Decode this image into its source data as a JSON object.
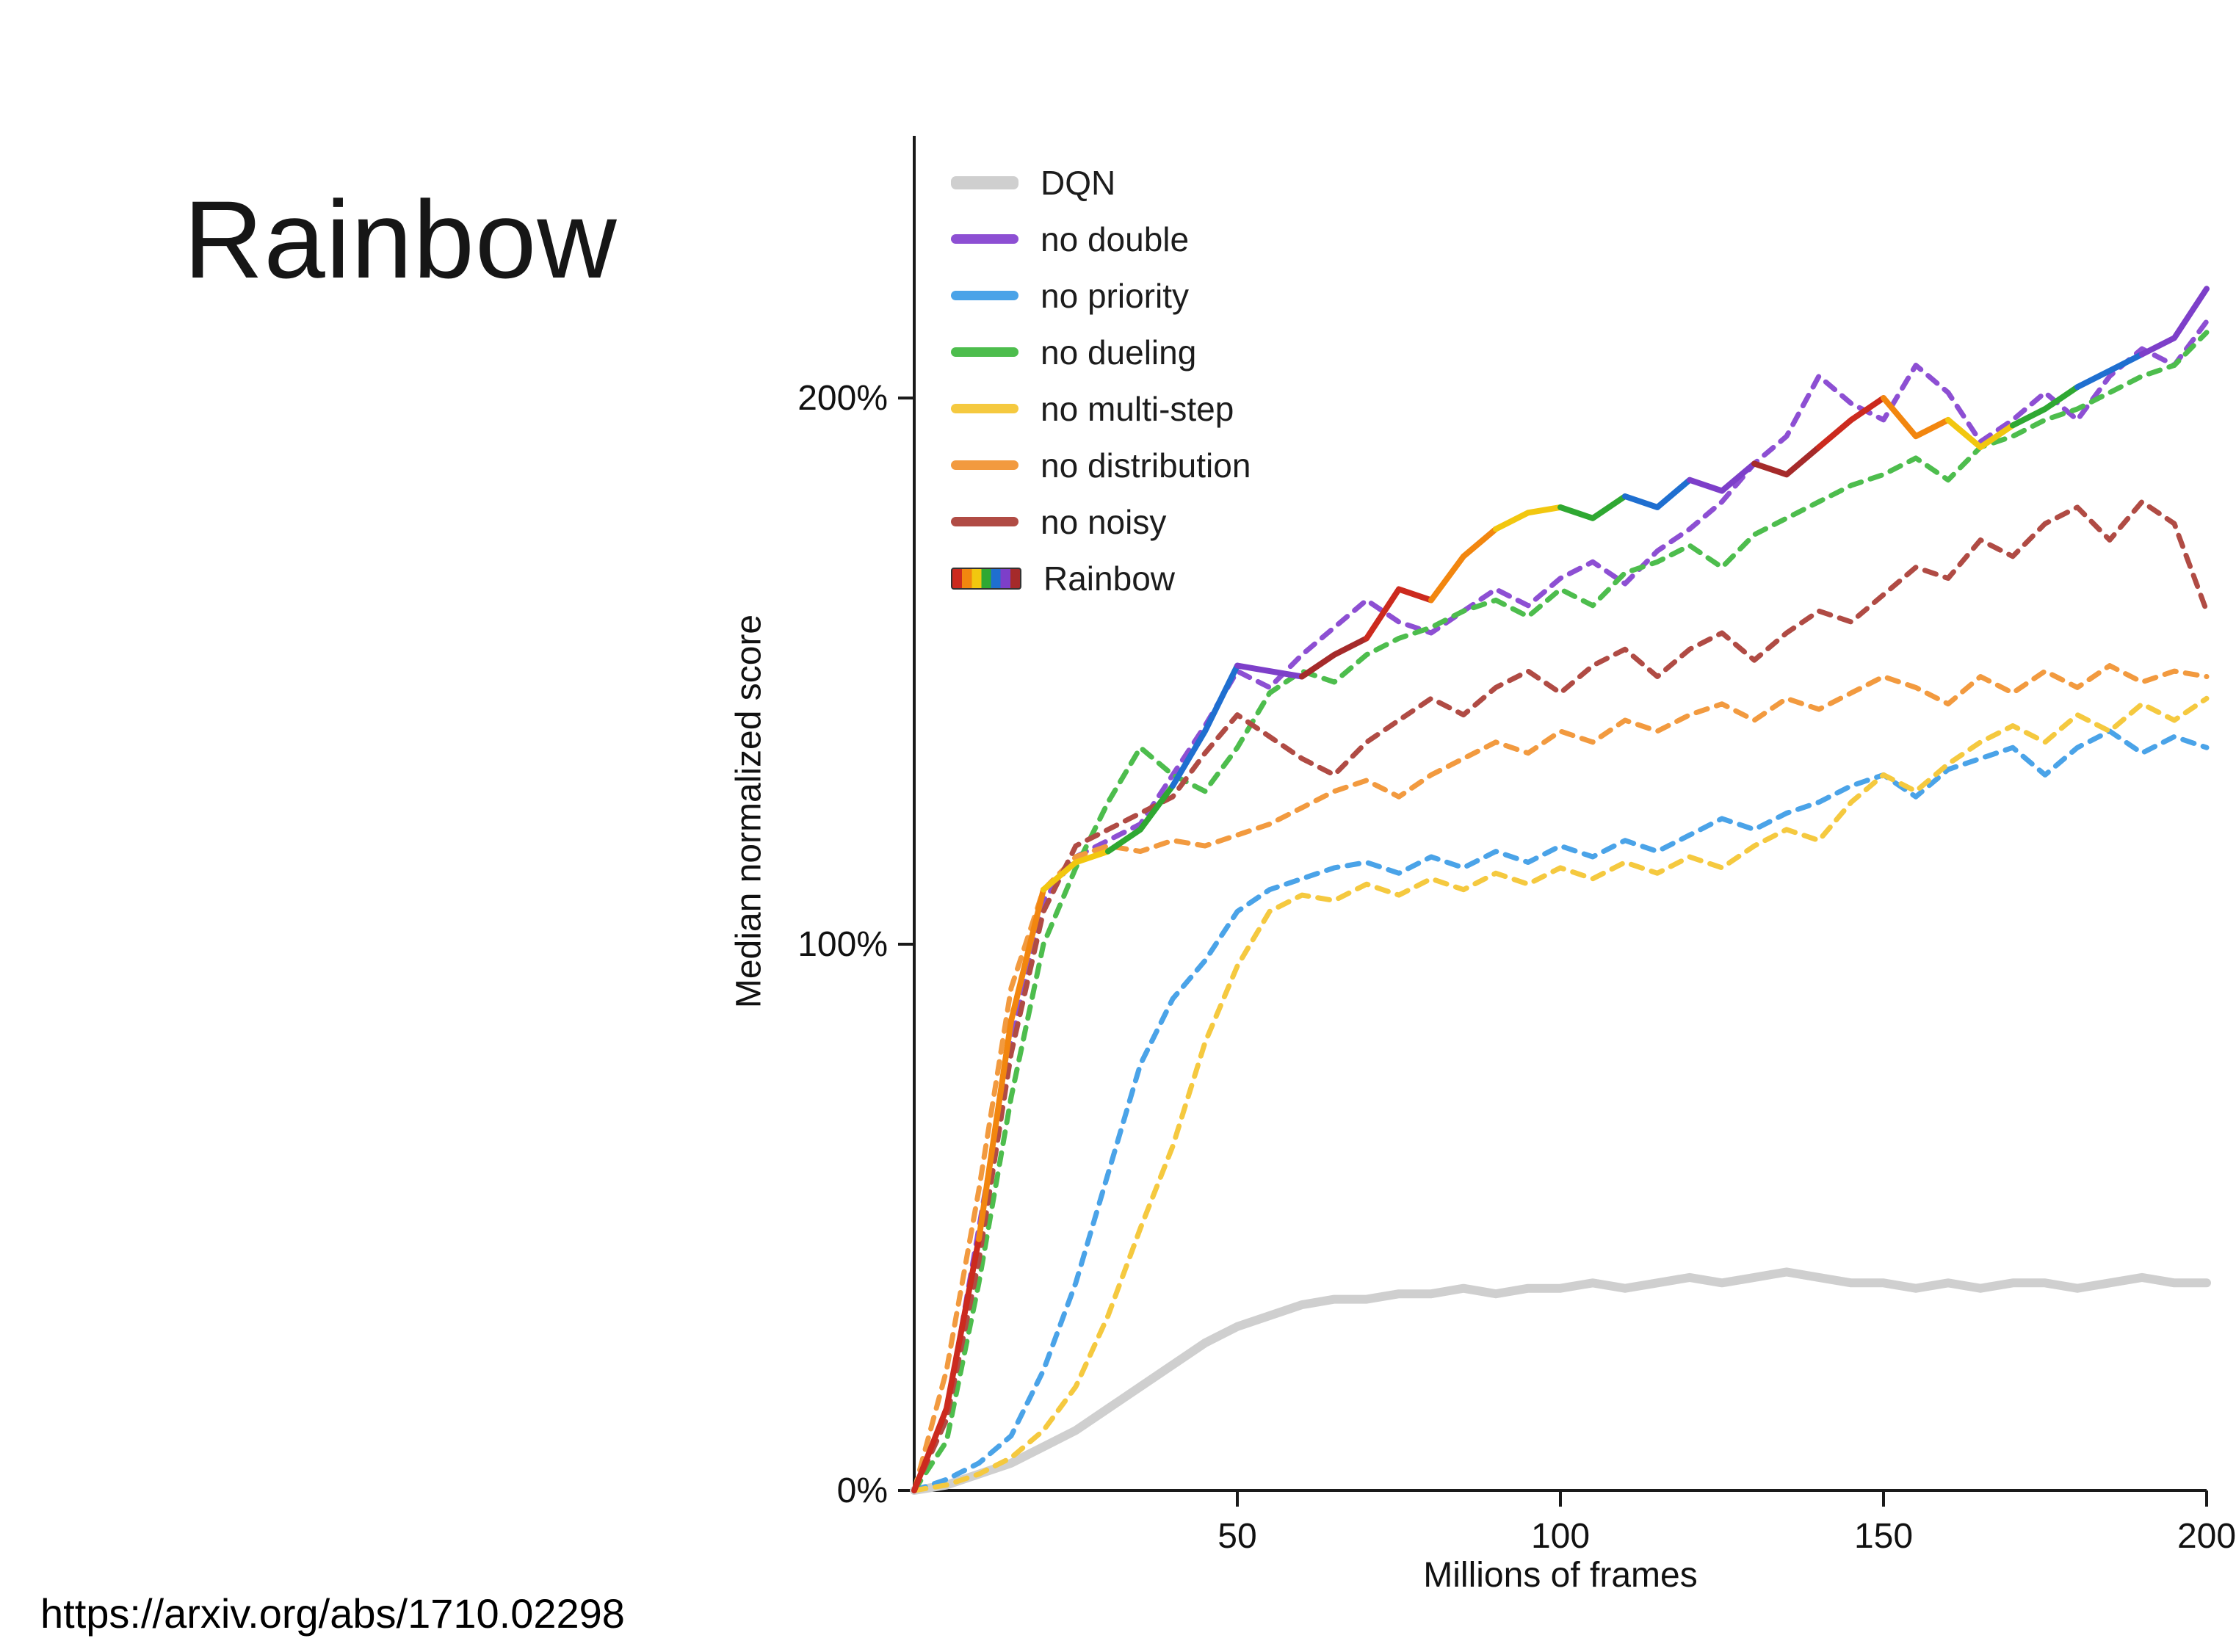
{
  "slide": {
    "title": "Rainbow",
    "source_url": "https://arxiv.org/abs/1710.02298"
  },
  "chart_data": {
    "type": "line",
    "title": "",
    "xlabel": "Millions of frames",
    "ylabel": "Median normalized score",
    "xlim": [
      0,
      200
    ],
    "ylim": [
      0,
      248
    ],
    "grid": false,
    "legend_position": "upper left",
    "x_ticks": [
      {
        "value": 50,
        "label": "50"
      },
      {
        "value": 100,
        "label": "100"
      },
      {
        "value": 150,
        "label": "150"
      },
      {
        "value": 200,
        "label": "200"
      }
    ],
    "y_ticks": [
      {
        "value": 0,
        "label": "0%"
      },
      {
        "value": 100,
        "label": "100%"
      },
      {
        "value": 200,
        "label": "200%"
      }
    ],
    "x": [
      0,
      5,
      10,
      15,
      20,
      25,
      30,
      35,
      40,
      45,
      50,
      55,
      60,
      65,
      70,
      75,
      80,
      85,
      90,
      95,
      100,
      105,
      110,
      115,
      120,
      125,
      130,
      135,
      140,
      145,
      150,
      155,
      160,
      165,
      170,
      175,
      180,
      185,
      190,
      195,
      200
    ],
    "series": [
      {
        "name": "DQN",
        "color": "#cfcfcf",
        "style": "solid",
        "width": 12,
        "values": [
          0,
          1,
          3,
          5,
          8,
          11,
          15,
          19,
          23,
          27,
          30,
          32,
          34,
          35,
          35,
          36,
          36,
          37,
          36,
          37,
          37,
          38,
          37,
          38,
          39,
          38,
          39,
          40,
          39,
          38,
          38,
          37,
          38,
          37,
          38,
          38,
          37,
          38,
          39,
          38,
          38
        ]
      },
      {
        "name": "no double",
        "color": "#8d4fd3",
        "style": "dashed",
        "width": 7,
        "values": [
          0,
          14,
          48,
          82,
          108,
          116,
          119,
          122,
          131,
          140,
          150,
          147,
          153,
          158,
          163,
          159,
          157,
          161,
          165,
          162,
          167,
          170,
          166,
          172,
          176,
          181,
          188,
          193,
          204,
          199,
          196,
          206,
          201,
          192,
          196,
          201,
          196,
          204,
          209,
          206,
          214
        ]
      },
      {
        "name": "no priority",
        "color": "#4aa3e8",
        "style": "dashed",
        "width": 7,
        "values": [
          0,
          2,
          5,
          10,
          22,
          38,
          58,
          78,
          90,
          97,
          106,
          110,
          112,
          114,
          115,
          113,
          116,
          114,
          117,
          115,
          118,
          116,
          119,
          117,
          120,
          123,
          121,
          124,
          126,
          129,
          131,
          127,
          132,
          134,
          136,
          131,
          136,
          139,
          135,
          138,
          136
        ]
      },
      {
        "name": "no dueling",
        "color": "#4dbd4d",
        "style": "dashed",
        "width": 7,
        "values": [
          0,
          9,
          38,
          72,
          100,
          114,
          126,
          136,
          131,
          128,
          136,
          146,
          150,
          148,
          153,
          156,
          158,
          161,
          163,
          160,
          165,
          162,
          168,
          170,
          173,
          169,
          175,
          178,
          181,
          184,
          186,
          189,
          185,
          191,
          193,
          196,
          198,
          201,
          204,
          206,
          212
        ]
      },
      {
        "name": "no multi-step",
        "color": "#f5c93f",
        "style": "dashed",
        "width": 7,
        "values": [
          0,
          1,
          3,
          6,
          11,
          19,
          32,
          48,
          63,
          82,
          96,
          106,
          109,
          108,
          111,
          109,
          112,
          110,
          113,
          111,
          114,
          112,
          115,
          113,
          116,
          114,
          118,
          121,
          119,
          126,
          131,
          128,
          133,
          137,
          140,
          137,
          142,
          139,
          144,
          141,
          145
        ]
      },
      {
        "name": "no distribution",
        "color": "#f29a3f",
        "style": "dashed",
        "width": 7,
        "values": [
          0,
          22,
          55,
          92,
          110,
          116,
          118,
          117,
          119,
          118,
          120,
          122,
          125,
          128,
          130,
          127,
          131,
          134,
          137,
          135,
          139,
          137,
          141,
          139,
          142,
          144,
          141,
          145,
          143,
          146,
          149,
          147,
          144,
          149,
          146,
          150,
          147,
          151,
          148,
          150,
          149
        ]
      },
      {
        "name": "no noisy",
        "color": "#b04b44",
        "style": "dashed",
        "width": 7,
        "values": [
          0,
          13,
          42,
          80,
          106,
          118,
          121,
          124,
          127,
          135,
          142,
          138,
          134,
          131,
          137,
          141,
          145,
          142,
          147,
          150,
          146,
          151,
          154,
          149,
          154,
          157,
          152,
          157,
          161,
          159,
          164,
          169,
          167,
          174,
          171,
          177,
          180,
          174,
          181,
          177,
          161
        ]
      },
      {
        "name": "Rainbow",
        "color": "multicolor",
        "palette": [
          "#cc2a1e",
          "#f2860f",
          "#f2c70f",
          "#2fa832",
          "#1f6fd0",
          "#7d3fc9",
          "#a52a2a"
        ],
        "style": "solid",
        "width": 8,
        "values": [
          0,
          15,
          46,
          86,
          110,
          115,
          117,
          121,
          129,
          139,
          151,
          150,
          149,
          153,
          156,
          165,
          163,
          171,
          176,
          179,
          180,
          178,
          182,
          180,
          185,
          183,
          188,
          186,
          191,
          196,
          200,
          193,
          196,
          191,
          195,
          198,
          202,
          205,
          208,
          211,
          220
        ]
      }
    ]
  }
}
